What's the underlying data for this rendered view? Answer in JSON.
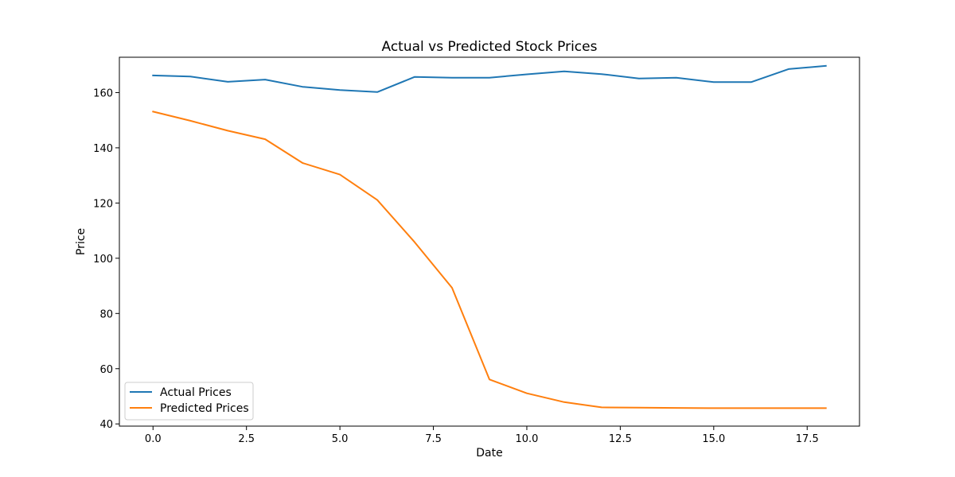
{
  "chart_data": {
    "type": "line",
    "title": "Actual vs Predicted Stock Prices",
    "xlabel": "Date",
    "ylabel": "Price",
    "x": [
      0,
      1,
      2,
      3,
      4,
      5,
      6,
      7,
      8,
      9,
      10,
      11,
      12,
      13,
      14,
      15,
      16,
      17,
      18
    ],
    "xlim": [
      -0.9,
      18.9
    ],
    "ylim": [
      39.2,
      172.8
    ],
    "xticks": [
      0.0,
      2.5,
      5.0,
      7.5,
      10.0,
      12.5,
      15.0,
      17.5
    ],
    "xtick_labels": [
      "0.0",
      "2.5",
      "5.0",
      "7.5",
      "10.0",
      "12.5",
      "15.0",
      "17.5"
    ],
    "yticks": [
      40,
      60,
      80,
      100,
      120,
      140,
      160
    ],
    "ytick_labels": [
      "40",
      "60",
      "80",
      "100",
      "120",
      "140",
      "160"
    ],
    "grid": false,
    "legend_position": "lower-left",
    "series": [
      {
        "name": "Actual Prices",
        "color": "#1f77b4",
        "values": [
          166.2,
          165.8,
          163.9,
          164.7,
          162.1,
          160.9,
          160.2,
          165.7,
          165.4,
          165.4,
          166.6,
          167.7,
          166.7,
          165.1,
          165.4,
          163.8,
          163.8,
          168.5,
          169.7
        ]
      },
      {
        "name": "Predicted Prices",
        "color": "#ff7f0e",
        "values": [
          153.1,
          149.8,
          146.2,
          143.1,
          134.5,
          130.3,
          121.1,
          105.8,
          89.3,
          56.1,
          51.1,
          47.9,
          46.0,
          45.9,
          45.8,
          45.7,
          45.7,
          45.7,
          45.7
        ]
      }
    ]
  }
}
